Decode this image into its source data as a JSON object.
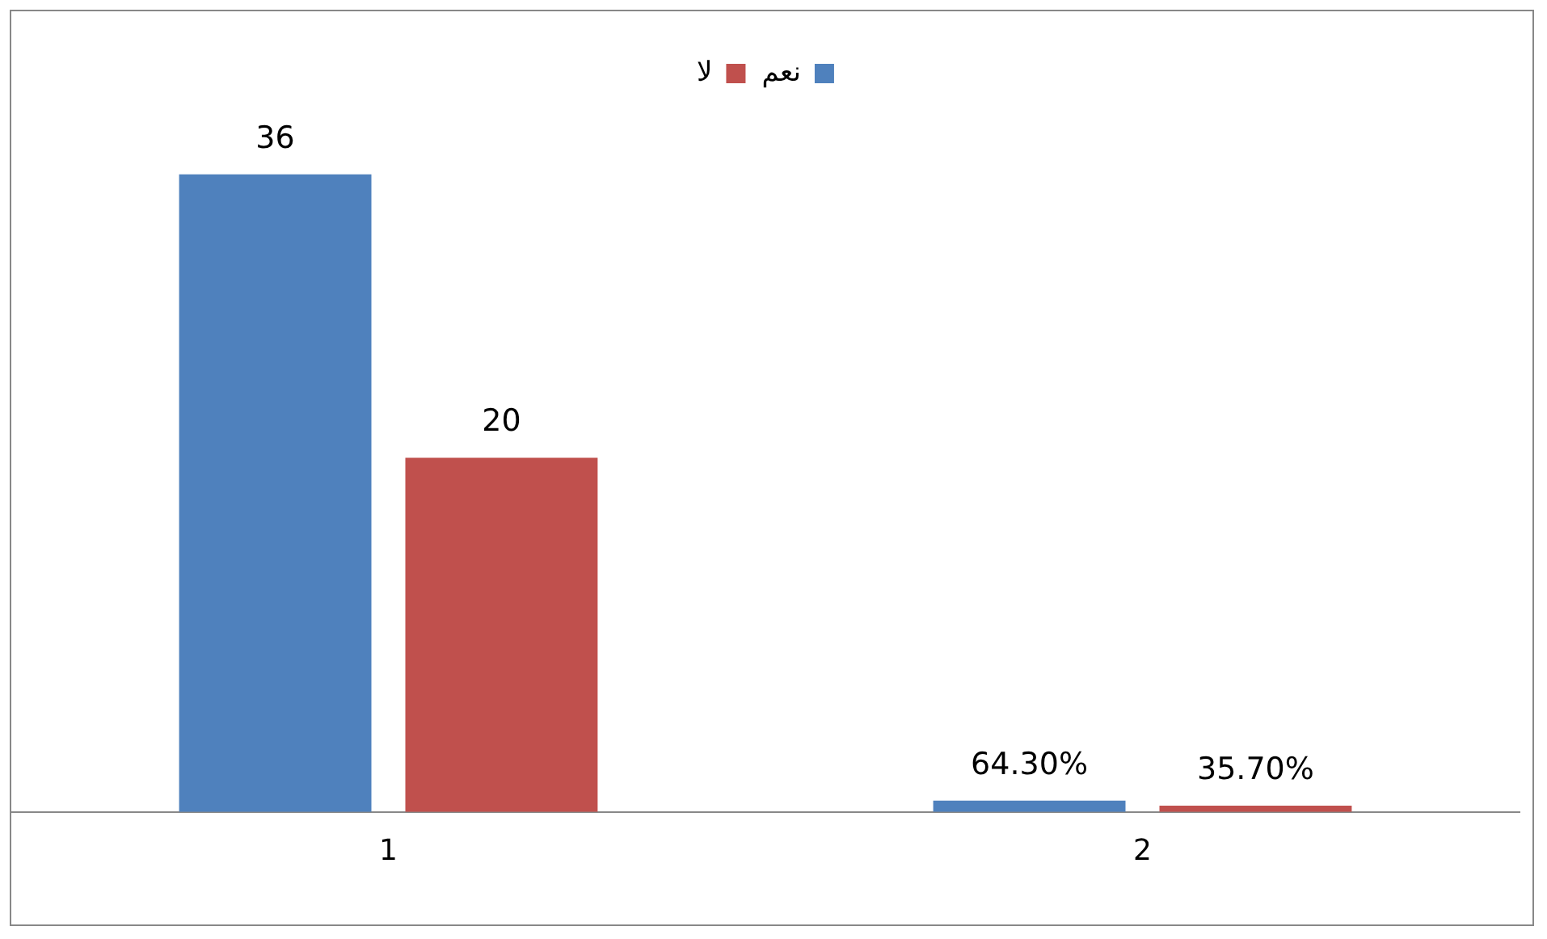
{
  "chart_data": {
    "type": "bar",
    "categories": [
      "1",
      "2"
    ],
    "series": [
      {
        "name": "نعم",
        "color": "#4f81bd",
        "values": [
          36,
          0.643
        ],
        "value_labels": [
          "36",
          "64.30%"
        ]
      },
      {
        "name": "لا",
        "color": "#c0504d",
        "values": [
          20,
          0.357
        ],
        "value_labels": [
          "20",
          "35.70%"
        ]
      }
    ],
    "legend": "top",
    "grid": false,
    "tick_labels": "x"
  }
}
